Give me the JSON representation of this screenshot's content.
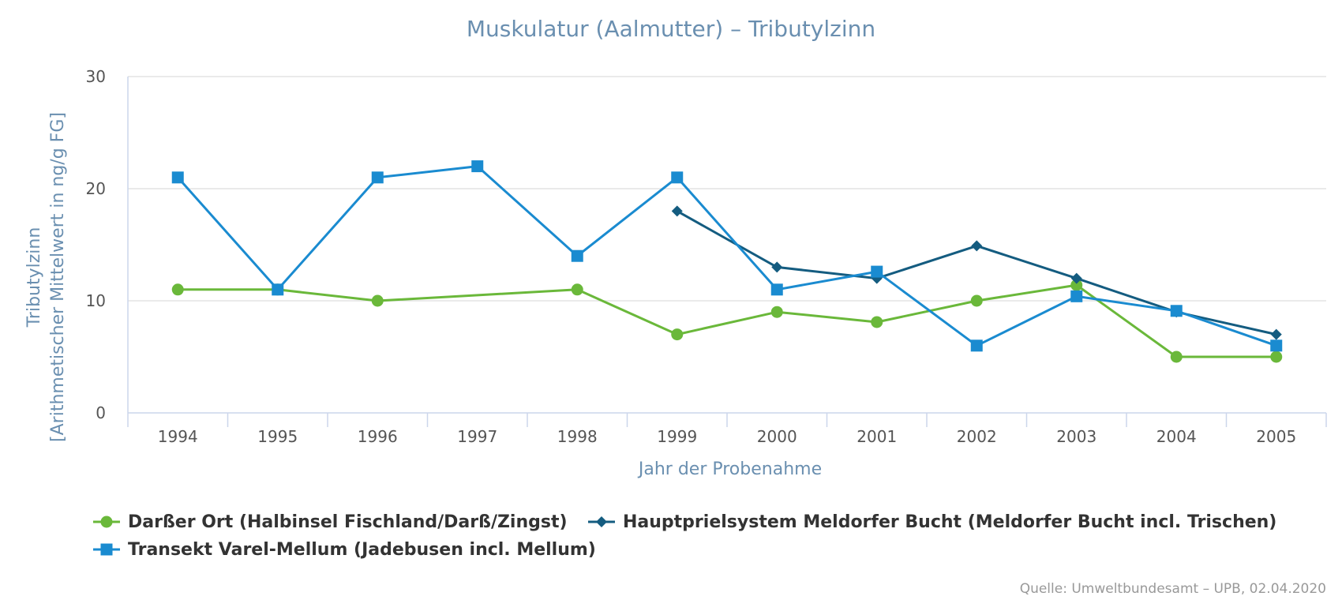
{
  "chart_data": {
    "type": "line",
    "title": "Muskulatur (Aalmutter) – Tributylzinn",
    "ylabel_line1": "Tributylzinn",
    "ylabel_line2": "[Arithmetischer Mittelwert in ng/g FG]",
    "xlabel": "Jahr der Probenahme",
    "categories": [
      "1994",
      "1995",
      "1996",
      "1997",
      "1998",
      "1999",
      "2000",
      "2001",
      "2002",
      "2003",
      "2004",
      "2005"
    ],
    "y_ticks": [
      "0",
      "10",
      "20",
      "30"
    ],
    "ylim": [
      0,
      30
    ],
    "grid": "horizontal",
    "legend_position": "bottom-left",
    "source": "Quelle: Umweltbundesamt – UPB, 02.04.2020",
    "series": [
      {
        "name": "Darßer Ort (Halbinsel Fischland/Darß/Zingst)",
        "color": "#6ab83a",
        "marker": "circle",
        "values": [
          11,
          11,
          10,
          null,
          11,
          7,
          9,
          8.1,
          10,
          11.4,
          5,
          5
        ]
      },
      {
        "name": "Hauptprielsystem Meldorfer Bucht (Meldorfer Bucht incl. Trischen)",
        "color": "#145c80",
        "marker": "diamond",
        "values": [
          null,
          null,
          null,
          null,
          null,
          18,
          13,
          12,
          14.9,
          12,
          9,
          7
        ]
      },
      {
        "name": "Transekt Varel-Mellum (Jadebusen incl. Mellum)",
        "color": "#1a8bd0",
        "marker": "square",
        "values": [
          21,
          11,
          21,
          22,
          14,
          21,
          11,
          12.6,
          6,
          10.4,
          9.1,
          6
        ]
      }
    ]
  }
}
